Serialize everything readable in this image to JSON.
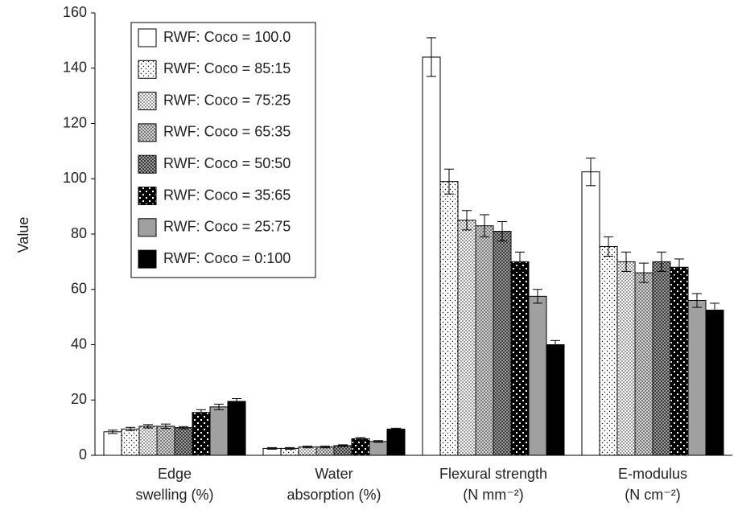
{
  "chart_data": {
    "type": "bar",
    "y_label": "Value",
    "categories": [
      [
        "Edge",
        "swelling (%)"
      ],
      [
        "Water",
        "absorption (%)"
      ],
      [
        "Flexural strength",
        "(N mm⁻²)"
      ],
      [
        "E-modulus",
        "(N cm⁻²)"
      ]
    ],
    "series": [
      {
        "name": "RWF: Coco = 100.0",
        "color": "#ffffff",
        "pattern": "solid",
        "values": [
          8.5,
          2.5,
          144,
          102.5
        ],
        "errors": [
          0.6,
          0.3,
          7,
          5
        ]
      },
      {
        "name": "RWF: Coco = 85:15",
        "color": "#ffffff",
        "pattern": "dots-sparse",
        "values": [
          9.5,
          2.5,
          99,
          75.5
        ],
        "errors": [
          0.6,
          0.3,
          4.5,
          3.5
        ]
      },
      {
        "name": "RWF: Coco = 75:25",
        "color": "#ffffff",
        "pattern": "dots-dense",
        "values": [
          10.5,
          3,
          85,
          70
        ],
        "errors": [
          0.6,
          0.3,
          3.5,
          3.5
        ]
      },
      {
        "name": "RWF: Coco = 65:35",
        "color": "#ffffff",
        "pattern": "cross-light",
        "values": [
          10.5,
          3,
          83,
          66
        ],
        "errors": [
          0.8,
          0.3,
          4,
          3.5
        ]
      },
      {
        "name": "RWF: Coco = 50:50",
        "color": "#ffffff",
        "pattern": "cross-dark",
        "values": [
          10,
          3.5,
          81,
          70
        ],
        "errors": [
          0.4,
          0.3,
          3.5,
          3.5
        ]
      },
      {
        "name": "RWF: Coco = 35:65",
        "color": "#000000",
        "pattern": "white-dots",
        "values": [
          15.5,
          6,
          70,
          68
        ],
        "errors": [
          1,
          0.4,
          3.5,
          3
        ]
      },
      {
        "name": "RWF: Coco = 25:75",
        "color": "#a0a0a0",
        "pattern": "solid",
        "values": [
          17.5,
          5,
          57.5,
          56
        ],
        "errors": [
          1,
          0.3,
          2.5,
          2.5
        ]
      },
      {
        "name": "RWF: Coco = 0:100",
        "color": "#000000",
        "pattern": "solid",
        "values": [
          19.5,
          9.5,
          40,
          52.5
        ],
        "errors": [
          1,
          0.3,
          1.5,
          2.5
        ]
      }
    ],
    "ylim": [
      0,
      160
    ],
    "yticks": [
      0,
      20,
      40,
      60,
      80,
      100,
      120,
      140,
      160
    ],
    "grid": false,
    "legend": "upper left"
  }
}
